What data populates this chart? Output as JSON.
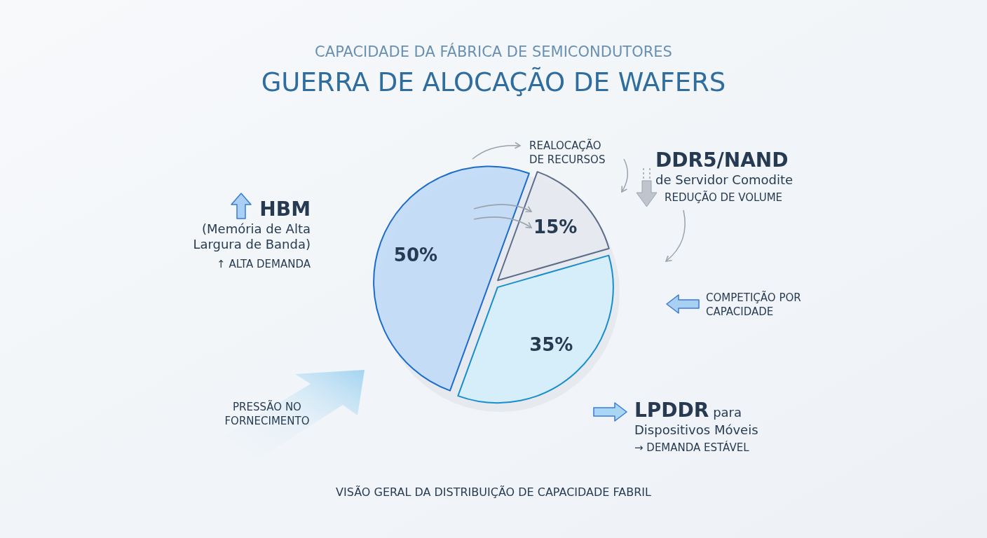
{
  "chart_data": {
    "type": "pie",
    "subtitle": "CAPACIDADE DA FÁBRICA DE SEMICONDUTORES",
    "title": "GUERRA DE ALOCAÇÃO DE WAFERS",
    "categories": [
      "HBM (Memória de Alta Largura de Banda)",
      "DDR5/NAND de Servidor Comodite",
      "LPDDR para Dispositivos Móveis"
    ],
    "values": [
      50,
      15,
      35
    ],
    "colors": [
      "#c3dbf7",
      "#e6e9ee",
      "#d5edfa"
    ],
    "value_labels": [
      "50%",
      "15%",
      "35%"
    ],
    "annotations": [
      "↑ ALTA DEMANDA",
      "REDUÇÃO DE VOLUME",
      "→ DEMANDA ESTÁVEL",
      "REALOCAÇÃO DE RECURSOS",
      "COMPETIÇÃO POR CAPACIDADE",
      "PRESSÃO NO FORNECIMENTO",
      "VISÃO GERAL DA DISTRIBUIÇÃO DE CAPACIDADE FABRIL"
    ]
  }
}
